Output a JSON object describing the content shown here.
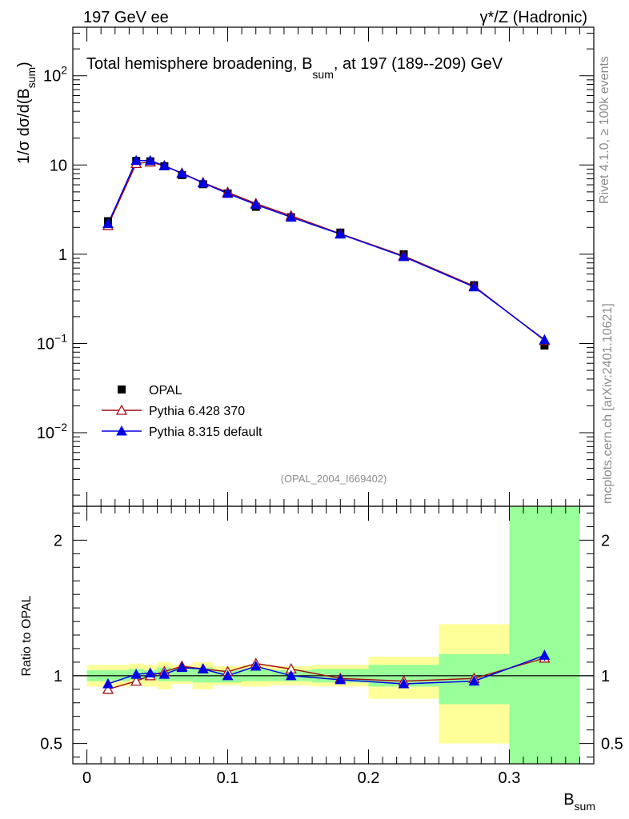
{
  "header": {
    "left": "197 GeV ee",
    "right": "γ*/Z (Hadronic)"
  },
  "side_labels": {
    "rivet": "Rivet 4.1.0, ≥ 100k events",
    "mcplots": "mcplots.cern.ch [arXiv:2401.10621]"
  },
  "colors": {
    "opal": "#000000",
    "pythia6": "#a50f15",
    "pythia8": "#0000e6",
    "band_inner": "#99ff99",
    "band_outer": "#ffff99",
    "side_text": "#8c8c8c",
    "analysis_id": "#8c8c8c"
  },
  "chart_data": {
    "type": "line",
    "title": "Total hemisphere broadening, B",
    "title_sub": "sum",
    "title_tail": ", at 197 (189--209) GeV",
    "ylabel_prefix": "1/σ  dσ/d(B",
    "ylabel_sub": "sum",
    "ylabel_suffix": ")",
    "xlabel": "B",
    "xlabel_sub": "sum",
    "analysis_id": "(OPAL_2004_I669402)",
    "xlim": [
      -0.01,
      0.36
    ],
    "ylim": [
      0.0015,
      350
    ],
    "yscale": "log",
    "x": [
      0.015,
      0.035,
      0.045,
      0.055,
      0.0675,
      0.0825,
      0.1,
      0.12,
      0.145,
      0.18,
      0.225,
      0.275,
      0.325
    ],
    "bins": [
      [
        0.0,
        0.03
      ],
      [
        0.03,
        0.04
      ],
      [
        0.04,
        0.05
      ],
      [
        0.05,
        0.06
      ],
      [
        0.06,
        0.075
      ],
      [
        0.075,
        0.09
      ],
      [
        0.09,
        0.11
      ],
      [
        0.11,
        0.13
      ],
      [
        0.13,
        0.16
      ],
      [
        0.16,
        0.2
      ],
      [
        0.2,
        0.25
      ],
      [
        0.25,
        0.3
      ],
      [
        0.3,
        0.35
      ]
    ],
    "series": [
      {
        "name": "OPAL",
        "marker": "square",
        "values": [
          2.35,
          11.1,
          11.0,
          9.7,
          7.7,
          6.1,
          4.8,
          3.4,
          2.6,
          1.75,
          1.0,
          0.45,
          0.095
        ]
      },
      {
        "name": "Pythia 6.428 370",
        "marker": "open-triangle",
        "values": [
          2.1,
          10.4,
          10.8,
          9.8,
          8.1,
          6.35,
          4.95,
          3.7,
          2.7,
          1.7,
          0.96,
          0.44,
          0.108
        ]
      },
      {
        "name": "Pythia 8.315 default",
        "marker": "triangle",
        "values": [
          2.2,
          11.2,
          11.2,
          9.8,
          8.05,
          6.3,
          4.8,
          3.6,
          2.6,
          1.68,
          0.94,
          0.43,
          0.11
        ]
      }
    ],
    "y_ticks": [
      {
        "value": 0.01,
        "base": "10",
        "exp": "−2"
      },
      {
        "value": 0.1,
        "base": "10",
        "exp": "−1"
      },
      {
        "value": 1,
        "base": "1",
        "exp": ""
      },
      {
        "value": 10,
        "base": "10",
        "exp": ""
      },
      {
        "value": 100,
        "base": "10",
        "exp": "2"
      }
    ],
    "x_ticks": [
      {
        "value": 0,
        "label": "0"
      },
      {
        "value": 0.1,
        "label": "0.1"
      },
      {
        "value": 0.2,
        "label": "0.2"
      },
      {
        "value": 0.3,
        "label": "0.3"
      }
    ],
    "ratio": {
      "ylabel": "Ratio to OPAL",
      "ylim": [
        0.35,
        2.25
      ],
      "ticks": [
        {
          "value": 0.5,
          "label": "0.5"
        },
        {
          "value": 1,
          "label": "1"
        },
        {
          "value": 2,
          "label": "2"
        }
      ],
      "inner_band": [
        [
          0.96,
          1.04
        ],
        [
          0.97,
          1.05
        ],
        [
          0.97,
          1.04
        ],
        [
          0.96,
          1.06
        ],
        [
          0.96,
          1.05
        ],
        [
          0.95,
          1.06
        ],
        [
          0.95,
          1.04
        ],
        [
          0.96,
          1.05
        ],
        [
          0.96,
          1.04
        ],
        [
          0.95,
          1.05
        ],
        [
          0.92,
          1.08
        ],
        [
          0.79,
          1.16
        ],
        [
          0.35,
          2.25
        ]
      ],
      "outer_band": [
        [
          0.92,
          1.08
        ],
        [
          0.93,
          1.09
        ],
        [
          0.92,
          1.08
        ],
        [
          0.9,
          1.1
        ],
        [
          0.94,
          1.08
        ],
        [
          0.9,
          1.1
        ],
        [
          0.93,
          1.07
        ],
        [
          0.92,
          1.08
        ],
        [
          0.93,
          1.07
        ],
        [
          0.92,
          1.08
        ],
        [
          0.83,
          1.14
        ],
        [
          0.5,
          1.38
        ],
        [
          0.35,
          2.25
        ]
      ],
      "pythia6": [
        0.9,
        0.96,
        1.0,
        1.03,
        1.07,
        1.05,
        1.03,
        1.09,
        1.05,
        0.98,
        0.96,
        0.98,
        1.13
      ],
      "pythia8": [
        0.94,
        1.01,
        1.02,
        1.01,
        1.06,
        1.05,
        1.0,
        1.07,
        1.0,
        0.97,
        0.94,
        0.96,
        1.15
      ],
      "pythia8_err": [
        0.01,
        0.01,
        0.01,
        0.01,
        0.01,
        0.01,
        0.01,
        0.01,
        0.01,
        0.01,
        0.01,
        0.01,
        0.04
      ]
    }
  }
}
